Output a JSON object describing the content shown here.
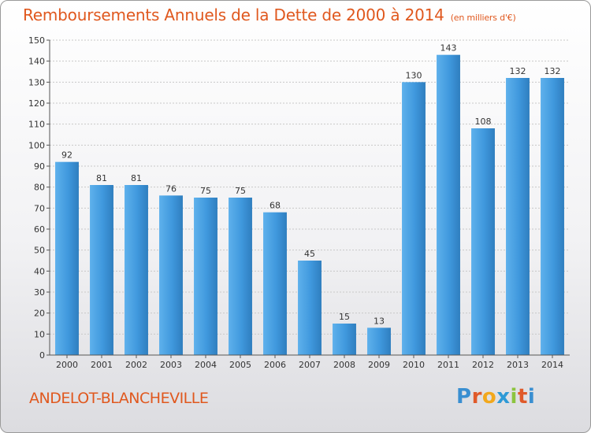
{
  "header": {
    "title": "Remboursements Annuels de la Dette de 2000 à 2014",
    "unit": "(en milliers d'€)"
  },
  "footer": {
    "commune": "ANDELOT-BLANCHEVILLE",
    "logo_letters": [
      "P",
      "r",
      "o",
      "x",
      "i",
      "t",
      "i"
    ],
    "logo_colors": [
      "#3a8fd1",
      "#e05a2a",
      "#f2a81d",
      "#2e9ad6",
      "#8cc43f",
      "#e05a2a",
      "#3a8fd1"
    ]
  },
  "chart_data": {
    "type": "bar",
    "categories": [
      "2000",
      "2001",
      "2002",
      "2003",
      "2004",
      "2005",
      "2006",
      "2007",
      "2008",
      "2009",
      "2010",
      "2011",
      "2012",
      "2013",
      "2014"
    ],
    "values": [
      92,
      81,
      81,
      76,
      75,
      75,
      68,
      45,
      15,
      13,
      130,
      143,
      108,
      132,
      132
    ],
    "title": "Remboursements Annuels de la Dette de 2000 à 2014",
    "xlabel": "",
    "ylabel": "",
    "ylim": [
      0,
      150
    ],
    "yticks": [
      0,
      10,
      20,
      30,
      40,
      50,
      60,
      70,
      80,
      90,
      100,
      110,
      120,
      130,
      140,
      150
    ],
    "grid": true,
    "bar_color": "#3f98dd",
    "bar_color_light": "#5fb1ec",
    "bar_color_dark": "#2f7ebf"
  }
}
